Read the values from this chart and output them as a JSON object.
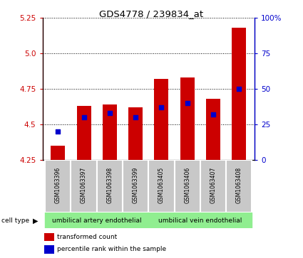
{
  "title": "GDS4778 / 239834_at",
  "samples": [
    "GSM1063396",
    "GSM1063397",
    "GSM1063398",
    "GSM1063399",
    "GSM1063405",
    "GSM1063406",
    "GSM1063407",
    "GSM1063408"
  ],
  "red_values": [
    4.35,
    4.63,
    4.64,
    4.62,
    4.82,
    4.83,
    4.68,
    5.18
  ],
  "blue_values": [
    20,
    30,
    33,
    30,
    37,
    40,
    32,
    50
  ],
  "ylim_left": [
    4.25,
    5.25
  ],
  "ylim_right": [
    0,
    100
  ],
  "yticks_left": [
    4.25,
    4.5,
    4.75,
    5.0,
    5.25
  ],
  "yticks_right": [
    0,
    25,
    50,
    75,
    100
  ],
  "cell_type_groups": [
    {
      "label": "umbilical artery endothelial",
      "start": 0,
      "end": 3
    },
    {
      "label": "umbilical vein endothelial",
      "start": 4,
      "end": 7
    }
  ],
  "group_color": "#90EE90",
  "bar_color": "#CC0000",
  "dot_color": "#0000CC",
  "bar_width": 0.55,
  "left_axis_color": "#CC0000",
  "right_axis_color": "#0000CC",
  "sample_box_color": "#C8C8C8",
  "sample_box_edge": "#FFFFFF"
}
